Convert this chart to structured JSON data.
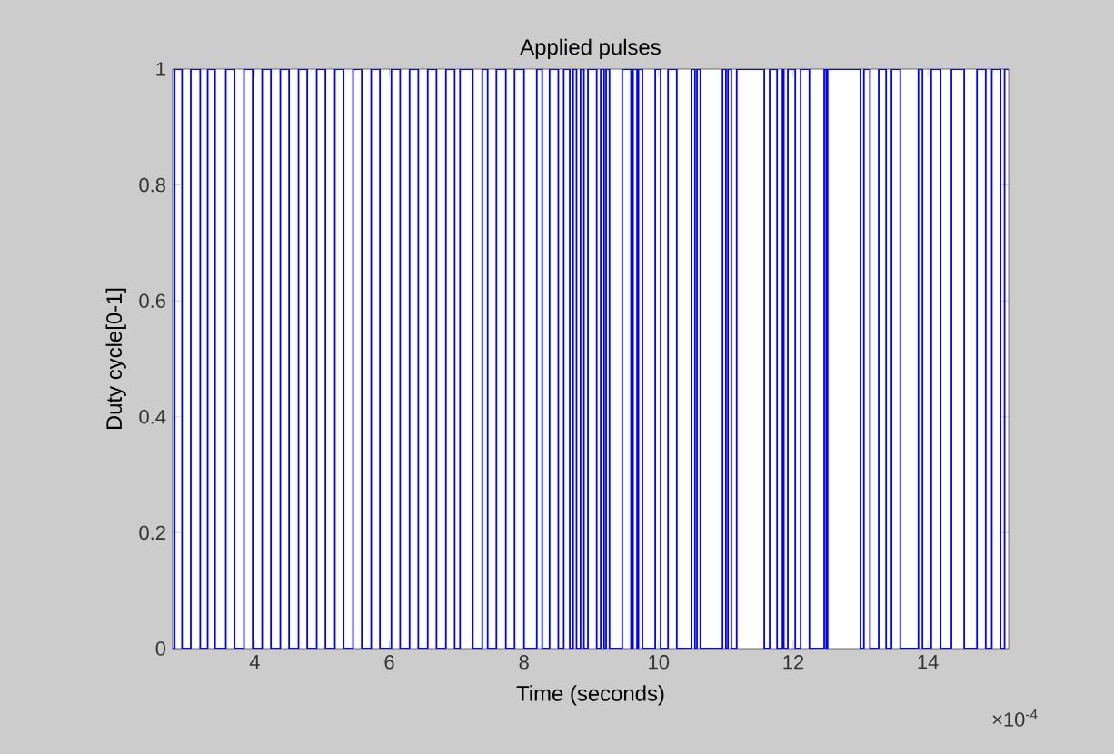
{
  "chart_data": {
    "type": "step",
    "title": "Applied pulses",
    "xlabel": "Time (seconds)",
    "ylabel": "Duty cycle[0-1]",
    "annotations": [
      "×10$^{-4}$"
    ],
    "xlim": [
      2.78,
      15.2
    ],
    "xticks": [
      4,
      6,
      8,
      10,
      12,
      14
    ],
    "ylim": [
      0,
      1
    ],
    "yticks": [
      0,
      0.2,
      0.4,
      0.6,
      0.8,
      1
    ],
    "grid": false,
    "marker": "none",
    "line_style": "solid",
    "series": [
      {
        "color": "#0000ff",
        "x": [
          2.78,
          2.81,
          2.92,
          3.05,
          3.19,
          3.3,
          3.41,
          3.57,
          3.7,
          3.84,
          3.97,
          4.11,
          4.24,
          4.38,
          4.51,
          4.65,
          4.78,
          4.92,
          5.05,
          5.19,
          5.32,
          5.46,
          5.59,
          5.73,
          5.86,
          6.03,
          6.16,
          6.3,
          6.43,
          6.57,
          6.7,
          6.84,
          6.97,
          7.05,
          7.24,
          7.38,
          7.46,
          7.59,
          7.73,
          7.86,
          8.0,
          8.19,
          8.27,
          8.38,
          8.51,
          8.59,
          8.68,
          8.73,
          8.78,
          8.84,
          8.89,
          8.95,
          9.08,
          9.14,
          9.19,
          9.22,
          9.27,
          9.46,
          9.59,
          9.62,
          9.68,
          9.7,
          9.76,
          9.95,
          10.03,
          10.14,
          10.27,
          10.49,
          10.54,
          10.57,
          10.62,
          10.95,
          11.0,
          11.03,
          11.08,
          11.16,
          11.57,
          11.65,
          11.76,
          11.84,
          11.86,
          11.92,
          12.03,
          12.11,
          12.24,
          12.46,
          12.49,
          12.51,
          13.0,
          13.05,
          13.14,
          13.27,
          13.38,
          13.46,
          13.59,
          13.86,
          13.92,
          14.05,
          14.19,
          14.35,
          14.54,
          14.73,
          14.86,
          14.95,
          15.08,
          15.14,
          15.2
        ],
        "values": [
          0,
          1,
          0,
          1,
          0,
          1,
          0,
          1,
          0,
          1,
          0,
          1,
          0,
          1,
          0,
          1,
          0,
          1,
          0,
          1,
          0,
          1,
          0,
          1,
          0,
          1,
          0,
          1,
          0,
          1,
          0,
          1,
          0,
          1,
          0,
          1,
          0,
          1,
          0,
          1,
          0,
          1,
          0,
          1,
          0,
          1,
          0,
          1,
          0,
          1,
          0,
          1,
          0,
          1,
          0,
          1,
          0,
          1,
          0,
          1,
          0,
          1,
          0,
          1,
          0,
          1,
          0,
          1,
          0,
          1,
          0,
          1,
          0,
          1,
          0,
          1,
          0,
          1,
          0,
          1,
          0,
          1,
          0,
          1,
          0,
          1,
          0,
          1,
          0,
          1,
          0,
          1,
          0,
          1,
          0,
          1,
          0,
          1,
          0,
          1,
          0,
          1,
          0,
          1,
          0,
          1,
          1
        ]
      }
    ]
  }
}
